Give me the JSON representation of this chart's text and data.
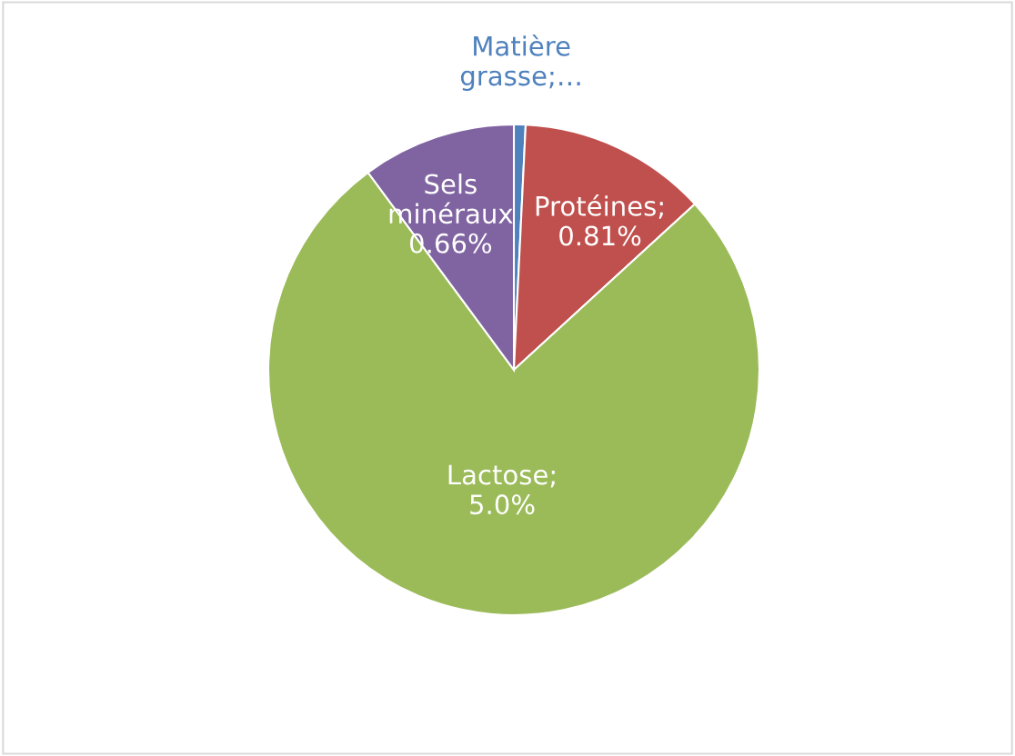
{
  "chart_data": {
    "type": "pie",
    "categories": [
      "Matière grasse",
      "Protéines",
      "Lactose",
      "Sels minéraux"
    ],
    "values": [
      0.05,
      0.81,
      5.0,
      0.66
    ],
    "value_labels": [
      ";…",
      "; 0.81%",
      "; 5.0%",
      "0.66%"
    ],
    "colors": [
      "#4f81bd",
      "#c0504d",
      "#9bbb59",
      "#8064a2"
    ],
    "legend": false
  }
}
